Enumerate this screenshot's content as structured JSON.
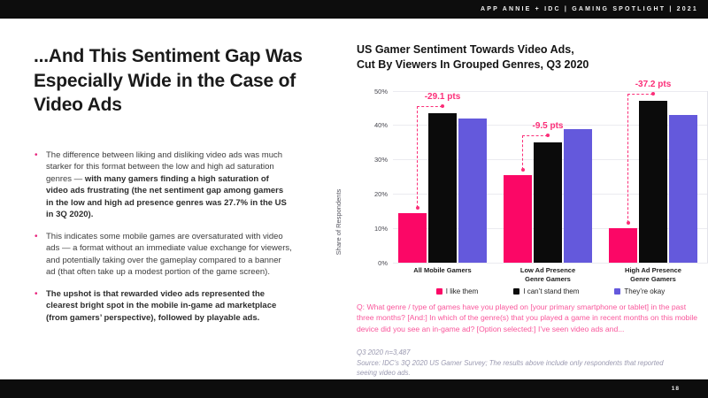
{
  "topbar": {
    "label": "APP ANNIE + IDC | GAMING SPOTLIGHT | 2021"
  },
  "footer": {
    "page_number": "18"
  },
  "left_panel": {
    "title": "...And This Sentiment Gap Was Especially Wide in the Case of Video Ads",
    "bullets": [
      {
        "segments": [
          {
            "text": "The difference between liking and disliking video ads was much starker for this format between the low and high ad saturation genres — ",
            "bold": false
          },
          {
            "text": "with many gamers finding a high saturation of video ads frustrating (the net sentiment gap among gamers in the low and high ad presence genres was 27.7% in the US in 3Q 2020).",
            "bold": true
          }
        ]
      },
      {
        "segments": [
          {
            "text": "This indicates some mobile games are oversaturated with video ads — a format without an immediate value exchange for viewers, and potentially taking over the gameplay compared to a banner ad (that often take up a modest portion of the game screen).",
            "bold": false
          }
        ]
      },
      {
        "segments": [
          {
            "text": "The upshot is that rewarded video ads represented the clearest bright spot in the mobile in-game ad marketplace (from gamers’ perspective), followed by playable ads.",
            "bold": true
          }
        ]
      }
    ]
  },
  "chart_data": {
    "type": "bar",
    "title": "US Gamer Sentiment Towards Video Ads,\nCut By Viewers In Grouped Genres, Q3 2020",
    "xlabel": "",
    "ylabel": "Share of Respondents",
    "ylim": [
      0,
      50
    ],
    "ytick_step": 10,
    "ytick_suffix": "%",
    "grid": true,
    "legend_position": "bottom",
    "categories": [
      "All Mobile Gamers",
      "Low Ad Presence\nGenre Gamers",
      "High Ad Presence\nGenre Gamers"
    ],
    "series": [
      {
        "name": "I like them",
        "color": "#fb0766",
        "values": [
          14.5,
          25.5,
          10.0
        ]
      },
      {
        "name": "I can’t stand them",
        "color": "#0b0b0b",
        "values": [
          43.6,
          35.0,
          47.2
        ]
      },
      {
        "name": "They’re okay",
        "color": "#6459dc",
        "values": [
          42.0,
          39.0,
          43.0
        ]
      }
    ],
    "annotations": [
      {
        "label": "-29.1 pts",
        "group": 0,
        "between": [
          "I like them",
          "I can’t stand them"
        ]
      },
      {
        "label": "-9.5 pts",
        "group": 1,
        "between": [
          "I like them",
          "I can’t stand them"
        ]
      },
      {
        "label": "-37.2 pts",
        "group": 2,
        "between": [
          "I like them",
          "I can’t stand them"
        ]
      }
    ],
    "annotation_color": "#fb2e78"
  },
  "chart_footnotes": {
    "question": "Q: What genre / type of games have you played on [your primary smartphone or tablet] in the past three months? [And:] In which of the genre(s) that you played a game in recent months on this mobile device did you see an in-game ad? [Option selected:] I’ve seen video ads and...",
    "sample": "Q3 2020 n=3,487",
    "source": "Source: IDC’s 3Q 2020 US Gamer Survey; The results above include only respondents that reported seeing video ads."
  },
  "colors": {
    "accent_pink": "#fb0766",
    "accent_purple": "#6459dc",
    "bar_black": "#0b0b0b",
    "question_pink": "#f9569b",
    "footnote_gray": "#9a99b0"
  }
}
